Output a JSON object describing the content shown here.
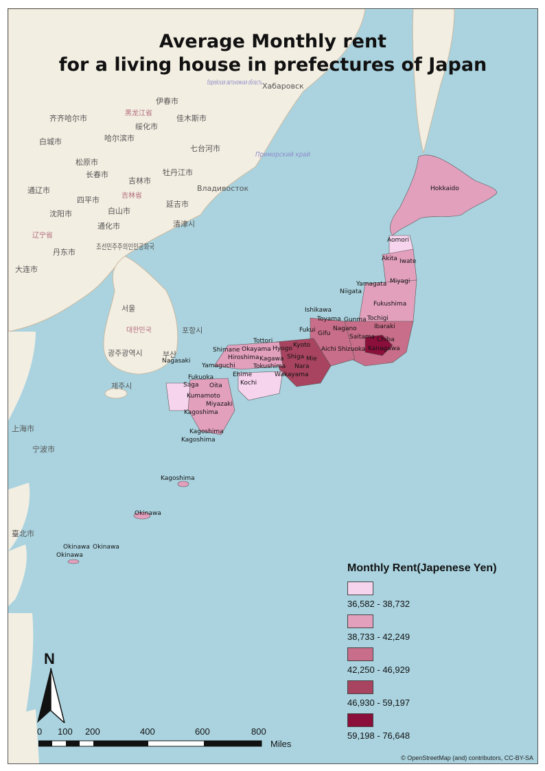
{
  "title_line1": "Average Monthly rent",
  "title_line2": "for a living house in prefectures of Japan",
  "legend": {
    "title": "Monthly Rent(Japenese Yen)",
    "classes": [
      {
        "range": "36,582 - 38,732",
        "color": "#f7d4ee"
      },
      {
        "range": "38,733 - 42,249",
        "color": "#e2a0bd"
      },
      {
        "range": "42,250 - 46,929",
        "color": "#c86e8a"
      },
      {
        "range": "46,930 - 59,197",
        "color": "#a8445f"
      },
      {
        "range": "59,198 - 76,648",
        "color": "#8a0f3b"
      }
    ]
  },
  "north_label": "N",
  "scale": {
    "ticks": [
      "0",
      "100",
      "200",
      "400",
      "600",
      "800"
    ],
    "unit": "Miles"
  },
  "attribution": "© OpenStreetMap (and) contributors, CC-BY-SA",
  "prefecture_labels": [
    "Hokkaido",
    "Aomori",
    "Akita",
    "Iwate",
    "Yamagata",
    "Miyagi",
    "Niigata",
    "Fukushima",
    "Ishikawa",
    "Toyama",
    "Gunma",
    "Tochigi",
    "Nagano",
    "Ibaraki",
    "Fukui",
    "Gifu",
    "Saitama",
    "Tottori",
    "Kyoto",
    "Chiba",
    "Shimane",
    "Okayama",
    "Hyogo",
    "Aichi",
    "Shizuoka",
    "Kanagawa",
    "Hiroshima",
    "Kagawa",
    "Shiga",
    "Mie",
    "Nagasaki",
    "Yamaguchi",
    "Tokushima",
    "Nara",
    "Ehime",
    "Wakayama",
    "Kochi",
    "Fukuoka",
    "Saga",
    "Oita",
    "Kumamoto",
    "Miyazaki",
    "Kagoshima",
    "Okinawa"
  ],
  "basemap_labels": [
    "伊春市",
    "黑龙江省",
    "齐齐哈尔市",
    "绥化市",
    "佳木斯市",
    "Хабаровск",
    "哈尔滨市",
    "白城市",
    "七台河市",
    "松原市",
    "长春市",
    "吉林市",
    "牡丹江市",
    "通辽市",
    "四平市",
    "吉林省",
    "Владивосток",
    "沈阳市",
    "白山市",
    "延吉市",
    "通化市",
    "辽宁省",
    "清津시",
    "丹东市",
    "조선민주주의인민공화국",
    "大连市",
    "서울",
    "대한민국",
    "포항시",
    "광주광역시",
    "부산",
    "제주시",
    "上海市",
    "宁波市",
    "臺北市",
    "Еврейская автономная область",
    "Приморский край"
  ]
}
